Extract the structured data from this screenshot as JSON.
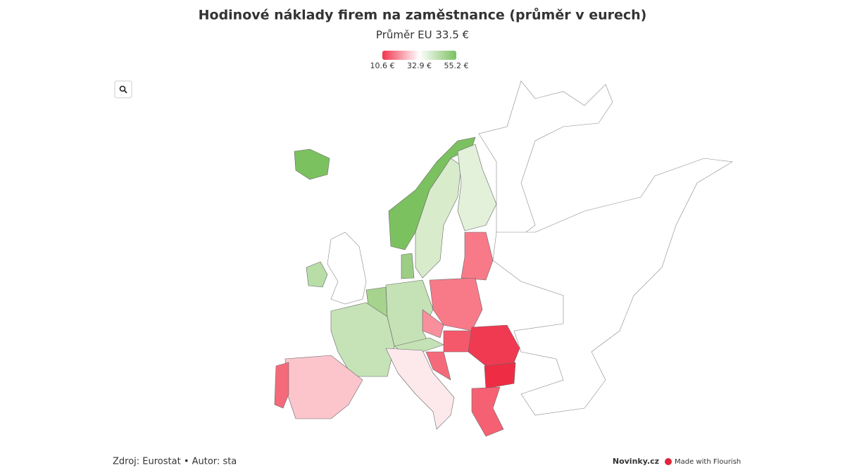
{
  "header": {
    "title": "Hodinové náklady firem na zaměstnance (průměr v eurech)",
    "subtitle": "Průměr EU 33.5 €"
  },
  "legend": {
    "stops": [
      {
        "value": 10.6,
        "label": "10.6 €",
        "color": "#f0364f"
      },
      {
        "value": 32.9,
        "label": "32.9 €",
        "color": "#ffffff"
      },
      {
        "value": 55.2,
        "label": "55.2 €",
        "color": "#7cc160"
      }
    ]
  },
  "footer": {
    "source": "Zdroj: Eurostat • Autor: sta",
    "brand": "Novinky.cz",
    "credit": "Made with Flourish"
  }
}
